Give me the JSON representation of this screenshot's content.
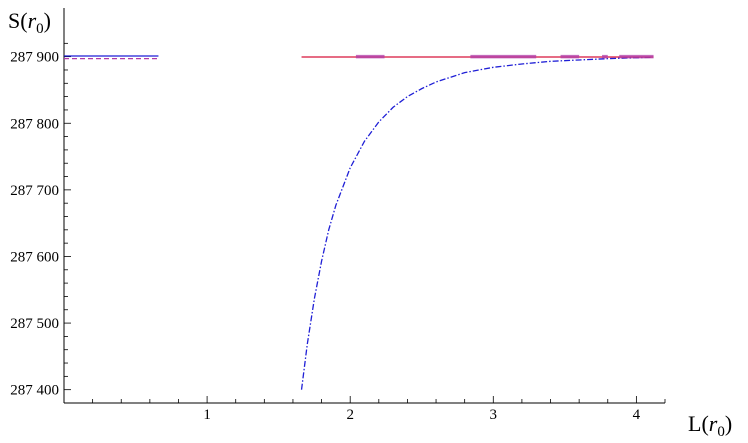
{
  "chart_data": {
    "type": "line",
    "title": "",
    "xlabel": {
      "main": "L(",
      "var": "r",
      "sub": "0",
      "close": ")"
    },
    "ylabel": {
      "main": "S(",
      "var": "r",
      "sub": "0",
      "close": ")"
    },
    "xlim": [
      0,
      4.2
    ],
    "ylim": [
      287380,
      287925
    ],
    "x_ticks": [
      1,
      2,
      3,
      4
    ],
    "x_tick_labels": [
      "1",
      "2",
      "3",
      "4"
    ],
    "y_ticks": [
      287400,
      287500,
      287600,
      287700,
      287800,
      287900
    ],
    "y_tick_labels": [
      "287 400",
      "287 500",
      "287 600",
      "287 700",
      "287 800",
      "287 900"
    ],
    "grid": false,
    "colors": {
      "blue": "#1f1fd6",
      "red": "#d8143a",
      "magenta": "#b03aa8",
      "axis": "#000000"
    },
    "series": [
      {
        "color": "blue",
        "style": "dash-dot",
        "points": [
          [
            1.66,
            287400
          ],
          [
            1.7,
            287468
          ],
          [
            1.75,
            287537
          ],
          [
            1.8,
            287593
          ],
          [
            1.85,
            287640
          ],
          [
            1.9,
            287677
          ],
          [
            2.0,
            287733
          ],
          [
            2.1,
            287773
          ],
          [
            2.2,
            287802
          ],
          [
            2.3,
            287824
          ],
          [
            2.4,
            287840
          ],
          [
            2.5,
            287852
          ],
          [
            2.6,
            287862
          ],
          [
            2.8,
            287876
          ],
          [
            3.0,
            287884
          ],
          [
            3.2,
            287889
          ],
          [
            3.4,
            287893
          ],
          [
            3.6,
            287895
          ],
          [
            3.8,
            287897
          ],
          [
            4.1,
            287899
          ]
        ]
      },
      {
        "color": "red",
        "style": "solid",
        "points": [
          [
            1.66,
            287899.5
          ],
          [
            4.12,
            287899.5
          ]
        ]
      },
      {
        "color": "blue",
        "style": "solid",
        "points": [
          [
            0,
            287901
          ],
          [
            0.66,
            287901
          ]
        ]
      },
      {
        "color": "magenta",
        "style": "dashed",
        "points": [
          [
            0,
            287897
          ],
          [
            0.66,
            287897
          ]
        ]
      },
      {
        "color": "magenta",
        "style": "thick-segments",
        "segments": [
          [
            2.04,
            2.24
          ],
          [
            2.84,
            3.3
          ],
          [
            3.47,
            3.6
          ],
          [
            3.76,
            3.8
          ],
          [
            3.88,
            4.12
          ]
        ],
        "y": 287900
      }
    ]
  }
}
